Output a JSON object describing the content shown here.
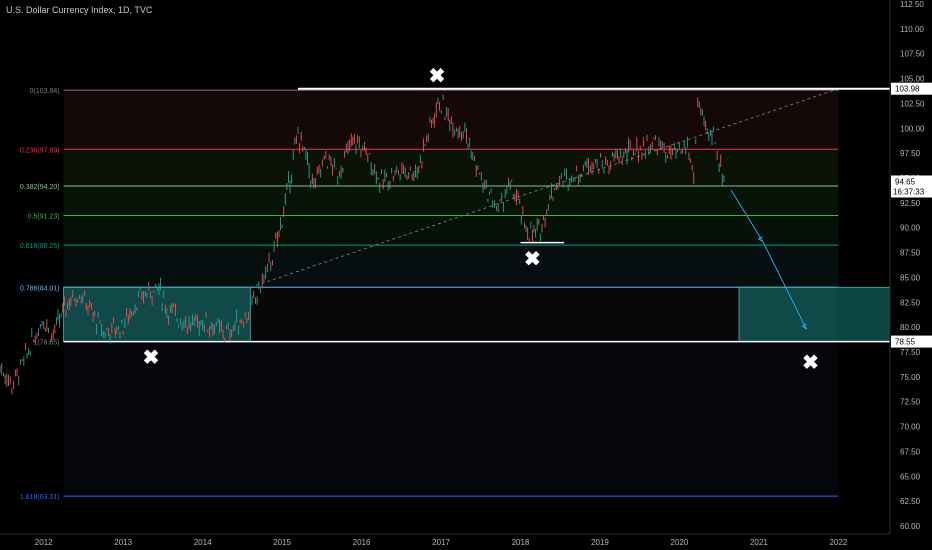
{
  "header": {
    "title": "U.S. Dollar Currency Index, 1D, TVC"
  },
  "price_labels": {
    "current_price": "94.65",
    "countdown": "16:37:33",
    "high_line": "103.98",
    "support_line": "78.55"
  },
  "colors": {
    "background": "#000000",
    "up_candle": "#26a69a",
    "down_candle": "#ef5350",
    "fib_0": "#787b86",
    "fib_236": "#f23645",
    "fib_382": "#81c784",
    "fib_5": "#4caf50",
    "fib_618": "#089981",
    "fib_786": "#64b5f6",
    "fib_1": "#787b86",
    "fib_1618": "#2962ff",
    "zone": "#1a7f7f"
  },
  "chart_data": {
    "type": "line",
    "title": "U.S. Dollar Currency Index, 1D, TVC",
    "xlabel": "",
    "ylabel": "",
    "x_ticks": [
      "2012",
      "2013",
      "2014",
      "2015",
      "2016",
      "2017",
      "2018",
      "2019",
      "2020",
      "2021",
      "2022"
    ],
    "y_ticks": [
      "60.00",
      "62.50",
      "65.00",
      "67.50",
      "70.00",
      "72.50",
      "75.00",
      "77.50",
      "80.00",
      "82.50",
      "85.00",
      "87.50",
      "90.00",
      "92.50",
      "95.00",
      "97.50",
      "100.00",
      "102.50",
      "105.00",
      "107.50",
      "110.00",
      "112.50"
    ],
    "ylim": [
      59.2,
      112.9
    ],
    "xlim": [
      2011.45,
      2022.65
    ],
    "series": [
      {
        "values": [
          [
            2011.45,
            76.0
          ],
          [
            2011.6,
            74.2
          ],
          [
            2011.75,
            76.5
          ],
          [
            2011.85,
            78.5
          ],
          [
            2012.0,
            81.0
          ],
          [
            2012.1,
            79.0
          ],
          [
            2012.3,
            82.5
          ],
          [
            2012.45,
            83.5
          ],
          [
            2012.6,
            81.5
          ],
          [
            2012.75,
            79.5
          ],
          [
            2012.9,
            79.8
          ],
          [
            2013.0,
            80.2
          ],
          [
            2013.15,
            82.3
          ],
          [
            2013.3,
            83.5
          ],
          [
            2013.45,
            84.0
          ],
          [
            2013.55,
            81.8
          ],
          [
            2013.7,
            81.0
          ],
          [
            2013.85,
            80.2
          ],
          [
            2014.0,
            80.6
          ],
          [
            2014.15,
            80.0
          ],
          [
            2014.3,
            79.3
          ],
          [
            2014.45,
            80.5
          ],
          [
            2014.6,
            81.5
          ],
          [
            2014.75,
            84.5
          ],
          [
            2014.9,
            87.5
          ],
          [
            2015.0,
            91.0
          ],
          [
            2015.1,
            95.0
          ],
          [
            2015.2,
            99.5
          ],
          [
            2015.3,
            97.0
          ],
          [
            2015.4,
            94.0
          ],
          [
            2015.55,
            97.2
          ],
          [
            2015.7,
            95.3
          ],
          [
            2015.85,
            98.2
          ],
          [
            2015.95,
            98.6
          ],
          [
            2016.1,
            97.0
          ],
          [
            2016.25,
            94.4
          ],
          [
            2016.4,
            95.5
          ],
          [
            2016.55,
            95.8
          ],
          [
            2016.7,
            95.6
          ],
          [
            2016.8,
            98.5
          ],
          [
            2016.9,
            101.0
          ],
          [
            2016.98,
            102.8
          ],
          [
            2017.05,
            101.6
          ],
          [
            2017.15,
            100.5
          ],
          [
            2017.3,
            99.8
          ],
          [
            2017.4,
            97.0
          ],
          [
            2017.55,
            94.0
          ],
          [
            2017.65,
            92.8
          ],
          [
            2017.72,
            91.8
          ],
          [
            2017.85,
            94.2
          ],
          [
            2017.95,
            93.0
          ],
          [
            2018.05,
            90.2
          ],
          [
            2018.15,
            89.2
          ],
          [
            2018.25,
            89.8
          ],
          [
            2018.35,
            92.5
          ],
          [
            2018.45,
            94.5
          ],
          [
            2018.6,
            95.0
          ],
          [
            2018.75,
            95.6
          ],
          [
            2018.9,
            96.8
          ],
          [
            2019.05,
            96.2
          ],
          [
            2019.2,
            97.0
          ],
          [
            2019.4,
            97.6
          ],
          [
            2019.55,
            98.0
          ],
          [
            2019.7,
            98.6
          ],
          [
            2019.85,
            97.4
          ],
          [
            2020.0,
            97.4
          ],
          [
            2020.1,
            98.3
          ],
          [
            2020.18,
            95.0
          ],
          [
            2020.23,
            102.8
          ],
          [
            2020.33,
            99.5
          ],
          [
            2020.45,
            99.2
          ],
          [
            2020.5,
            96.5
          ],
          [
            2020.58,
            94.65
          ]
        ]
      }
    ],
    "fibonacci_retracement": [
      {
        "label": "0(103.84)",
        "level": 103.84
      },
      {
        "label": "0.236(97.89)",
        "level": 97.89
      },
      {
        "label": "0.382(94.20)",
        "level": 94.2
      },
      {
        "label": "0.5(91.23)",
        "level": 91.23
      },
      {
        "label": "0.618(88.25)",
        "level": 88.25
      },
      {
        "label": "0.786(84.01)",
        "level": 84.01
      },
      {
        "label": "1(78.55)",
        "level": 78.55
      },
      {
        "label": "1.618(63.01)",
        "level": 63.01
      }
    ],
    "horizontal_lines": [
      103.98,
      78.55,
      88.5
    ],
    "trendline": {
      "from": [
        2014.6,
        84.0
      ],
      "to": [
        2021.95,
        103.84
      ]
    },
    "zones": [
      {
        "x0": 2012.25,
        "x1": 2014.6,
        "y0": 78.55,
        "y1": 84.01
      },
      {
        "x0": 2020.75,
        "x1": 2022.65,
        "y0": 78.55,
        "y1": 84.01
      }
    ],
    "projection_arrows": [
      {
        "from": [
          2020.65,
          93.8
        ],
        "to": [
          2021.05,
          88.6
        ]
      },
      {
        "from": [
          2021.05,
          88.6
        ],
        "to": [
          2021.6,
          79.8
        ]
      }
    ],
    "markers": [
      {
        "symbol": "✖",
        "x": 2016.95,
        "y": 105.2
      },
      {
        "symbol": "✖",
        "x": 2018.15,
        "y": 86.8
      },
      {
        "symbol": "✖",
        "x": 2013.35,
        "y": 76.9
      },
      {
        "symbol": "✖",
        "x": 2021.65,
        "y": 76.4
      }
    ]
  }
}
